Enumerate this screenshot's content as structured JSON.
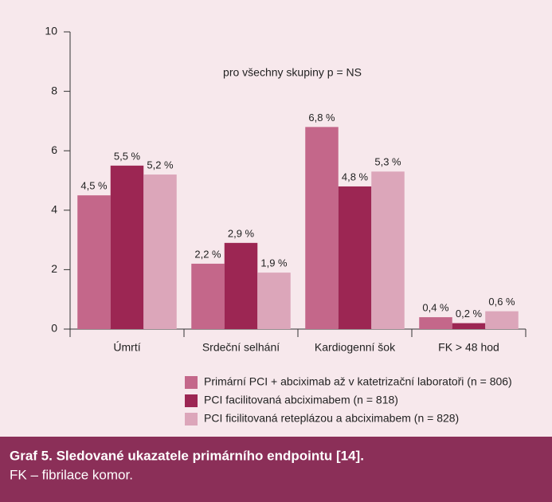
{
  "chart_data": {
    "type": "bar",
    "annotation": "pro všechny skupiny p = NS",
    "categories": [
      "Úmrtí",
      "Srdeční selhání",
      "Kardiogenní šok",
      "FK > 48 hod"
    ],
    "series": [
      {
        "name": "Primární PCI + abciximab až v katetrizační laboratoři (n = 806)",
        "color": "#c4678a",
        "values": [
          4.5,
          2.2,
          6.8,
          0.4
        ],
        "value_labels": [
          "4,5 %",
          "2,2 %",
          "6,8 %",
          "0,4 %"
        ]
      },
      {
        "name": "PCI facilitovaná abciximabem (n = 818)",
        "color": "#9c2653",
        "values": [
          5.5,
          2.9,
          4.8,
          0.2
        ],
        "value_labels": [
          "5,5 %",
          "2,9 %",
          "4,8 %",
          "0,2 %"
        ]
      },
      {
        "name": "PCI ficilitovaná reteplázou a abciximabem (n = 828)",
        "color": "#dca6ba",
        "values": [
          5.2,
          1.9,
          5.3,
          0.6
        ],
        "value_labels": [
          "5,2 %",
          "1,9 %",
          "5,3 %",
          "0,6 %"
        ]
      }
    ],
    "ylim": [
      0,
      10
    ],
    "yticks": [
      0,
      2,
      4,
      6,
      8,
      10
    ],
    "grid": false,
    "caption_title": "Graf 5. Sledované ukazatele primárního endpointu [14].",
    "caption_note": "FK – fibrilace komor."
  }
}
